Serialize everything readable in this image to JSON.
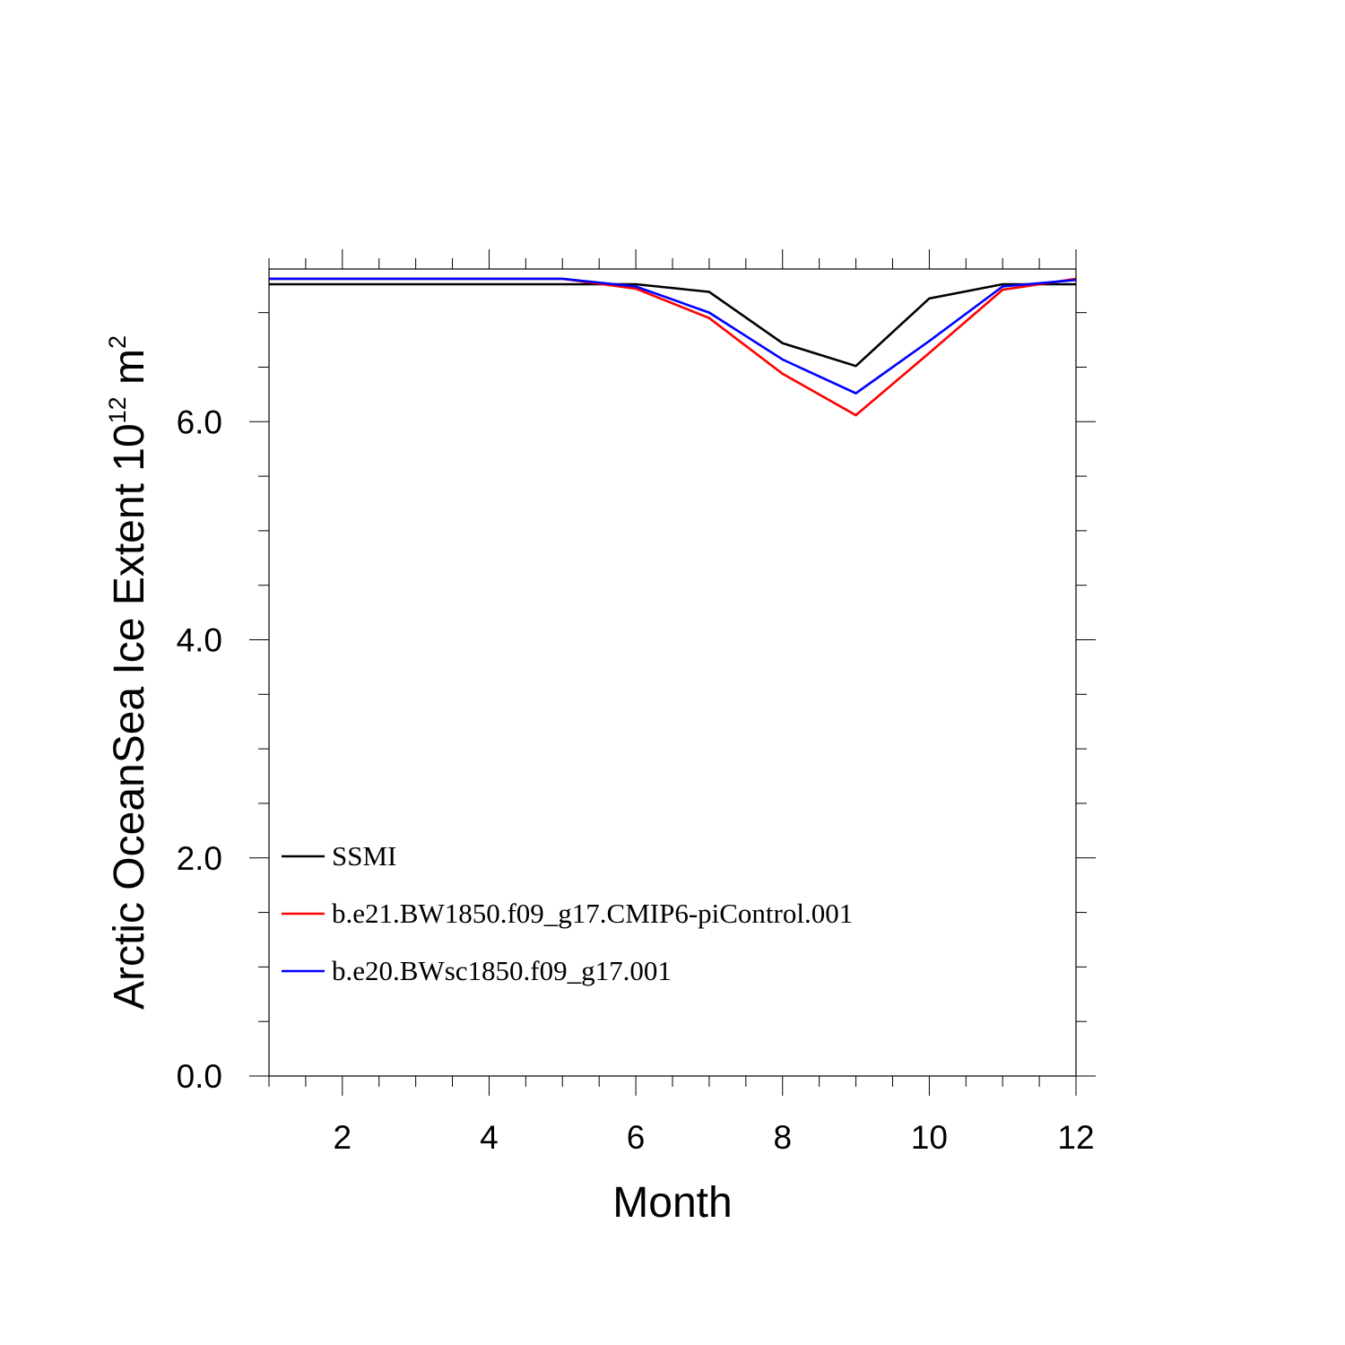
{
  "chart_data": {
    "type": "line",
    "title": "",
    "xlabel": "Month",
    "ylabel": {
      "main": "Arctic OceanSea Ice Extent 10",
      "sup": "12",
      "unit": " m",
      "unit_sup": "2"
    },
    "xlim": [
      1,
      12
    ],
    "ylim": [
      0,
      7.4
    ],
    "x_ticks": [
      2,
      4,
      6,
      8,
      10,
      12
    ],
    "x_tick_labels": [
      "2",
      "4",
      "6",
      "8",
      "10",
      "12"
    ],
    "y_ticks": [
      0,
      2,
      4,
      6
    ],
    "y_tick_labels": [
      "0.0",
      "2.0",
      "4.0",
      "6.0"
    ],
    "grid": false,
    "legend_position": "lower-left",
    "x": [
      1,
      2,
      3,
      4,
      5,
      6,
      7,
      8,
      9,
      10,
      11,
      12
    ],
    "series": [
      {
        "name": "SSMI",
        "color": "#000000",
        "values": [
          7.26,
          7.26,
          7.26,
          7.26,
          7.26,
          7.26,
          7.19,
          6.72,
          6.51,
          7.13,
          7.26,
          7.26
        ]
      },
      {
        "name": "b.e21.BW1850.f09_g17.CMIP6-piControl.001",
        "color": "#ff0000",
        "values": [
          7.31,
          7.31,
          7.31,
          7.31,
          7.31,
          7.22,
          6.95,
          6.44,
          6.06,
          6.63,
          7.21,
          7.31
        ]
      },
      {
        "name": "b.e20.BWsc1850.f09_g17.001",
        "color": "#0000ff",
        "values": [
          7.31,
          7.31,
          7.31,
          7.31,
          7.31,
          7.24,
          7.0,
          6.57,
          6.26,
          6.74,
          7.24,
          7.3
        ]
      }
    ]
  }
}
